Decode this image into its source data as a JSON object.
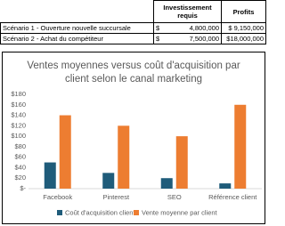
{
  "table": {
    "header": [
      "Investissement requis",
      "Profits"
    ],
    "rows": [
      [
        "Scénario 1 - Ouverture nouvelle succursale",
        "$",
        "4,800,000",
        "$ 9,150,000"
      ],
      [
        "Scénario 2 - Achat du compétiteur",
        "$",
        "7,500,000",
        "$18,000,000"
      ]
    ]
  },
  "chart_data": {
    "type": "bar",
    "title": "Ventes moyennes versus coût d'acquisition par client selon le canal marketing",
    "categories": [
      "Facebook",
      "Pinterest",
      "SEO",
      "Référence client"
    ],
    "series": [
      {
        "name": "Coût d'acquisition client",
        "color": "#1f5c7a",
        "values": [
          50,
          30,
          20,
          10
        ]
      },
      {
        "name": "Vente moyenne par client",
        "color": "#ed7d31",
        "values": [
          140,
          120,
          100,
          160
        ]
      }
    ],
    "ylim": [
      0,
      180
    ],
    "yticks": [
      {
        "value": 0,
        "label": "$-"
      },
      {
        "value": 20,
        "label": "$20"
      },
      {
        "value": 40,
        "label": "$40"
      },
      {
        "value": 60,
        "label": "$60"
      },
      {
        "value": 80,
        "label": "$80"
      },
      {
        "value": 100,
        "label": "$100"
      },
      {
        "value": 120,
        "label": "$120"
      },
      {
        "value": 140,
        "label": "$140"
      },
      {
        "value": 160,
        "label": "$160"
      },
      {
        "value": 180,
        "label": "$180"
      }
    ],
    "grid": false
  }
}
